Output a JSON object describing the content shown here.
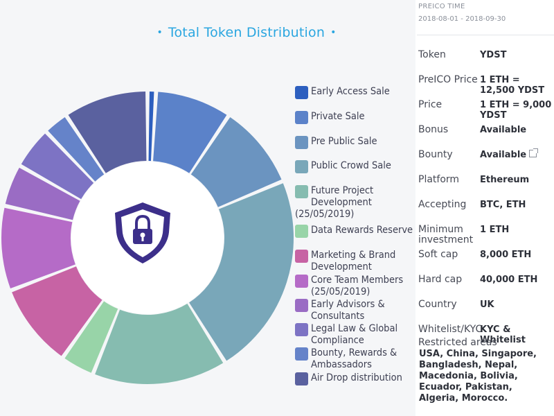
{
  "chart_data": {
    "type": "donut",
    "title": "Total Token Distribution",
    "center_icon": "shield-lock-icon",
    "segments": [
      {
        "name": "Early Access Sale",
        "value": 1,
        "color": "#2d5fbf"
      },
      {
        "name": "Private Sale",
        "value": 9,
        "color": "#5b82c9"
      },
      {
        "name": "Pre Public Sale",
        "value": 10,
        "color": "#6b94c0"
      },
      {
        "name": "Public Crowd Sale",
        "value": 24,
        "color": "#79a7b9"
      },
      {
        "name": "Future Project Development (25/05/2019)",
        "value": 16,
        "color": "#86bcb0"
      },
      {
        "name": "Data Rewards Reserve",
        "value": 4,
        "color": "#98d4a8"
      },
      {
        "name": "Marketing & Brand Development",
        "value": 10,
        "color": "#c763a4"
      },
      {
        "name": "Core Team Members (25/05/2019)",
        "value": 10,
        "color": "#b56bc7"
      },
      {
        "name": "Early Advisors & Consultants",
        "value": 5,
        "color": "#9a6cc4"
      },
      {
        "name": "Legal Law & Global Compliance",
        "value": 5,
        "color": "#7d73c4"
      },
      {
        "name": "Bounty, Rewards & Ambassadors",
        "value": 3,
        "color": "#6583c9"
      },
      {
        "name": "Air Drop distribution",
        "value": 10,
        "color": "#5a619f"
      }
    ]
  },
  "info": {
    "preico_label": "PREICO TIME",
    "preico_value": "2018-08-01 - 2018-09-30",
    "rows": [
      {
        "label": "Token",
        "value": "YDST"
      },
      {
        "label": "PreICO Price",
        "value": "1 ETH = 12,500 YDST"
      },
      {
        "label": "Price",
        "value": "1 ETH = 9,000 YDST"
      },
      {
        "label": "Bonus",
        "value": "Available"
      },
      {
        "label": "Bounty",
        "value": "Available"
      },
      {
        "label": "Platform",
        "value": "Ethereum"
      },
      {
        "label": "Accepting",
        "value": "BTC, ETH"
      },
      {
        "label": "Minimum investment",
        "value": "1 ETH"
      },
      {
        "label": "Soft cap",
        "value": "8,000 ETH"
      },
      {
        "label": "Hard cap",
        "value": "40,000 ETH"
      },
      {
        "label": "Country",
        "value": "UK"
      },
      {
        "label": "Whitelist/KYC",
        "value": "KYC & Whitelist"
      }
    ],
    "restricted_label": "Restricted areas",
    "restricted_value": "USA, China, Singapore, Bangladesh, Nepal, Macedonia, Bolivia, Ecuador, Pakistan, Algeria, Morocco."
  }
}
